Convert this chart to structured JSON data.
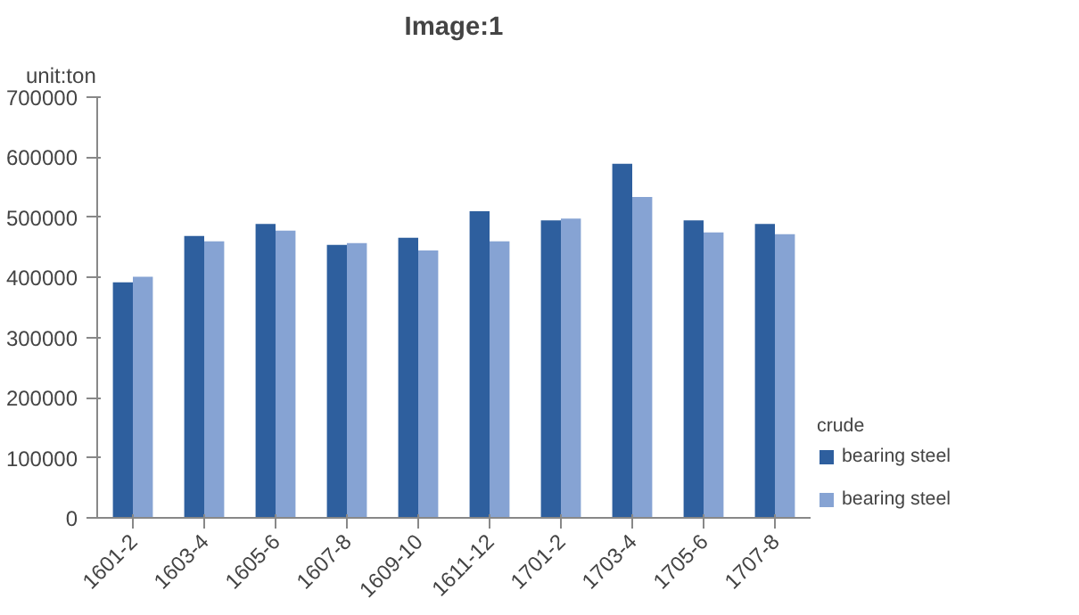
{
  "chart_data": {
    "type": "bar",
    "title": "Image:1",
    "ylabel": "unit:ton",
    "legend_title": "crude",
    "categories": [
      "1601-2",
      "1603-4",
      "1605-6",
      "1607-8",
      "1609-10",
      "1611-12",
      "1701-2",
      "1703-4",
      "1705-6",
      "1707-8"
    ],
    "series": [
      {
        "name": "bearing steel",
        "color": "#2e5f9e",
        "values": [
          392000,
          469000,
          489000,
          454000,
          466000,
          510000,
          495000,
          589000,
          495000,
          489000
        ]
      },
      {
        "name": "bearing steel",
        "color": "#86a3d3",
        "values": [
          401000,
          460000,
          478000,
          457000,
          445000,
          460000,
          498000,
          534000,
          475000,
          472000
        ]
      }
    ],
    "ylim": [
      0,
      700000
    ],
    "yticks": [
      0,
      100000,
      200000,
      300000,
      400000,
      500000,
      600000,
      700000
    ],
    "grid": false,
    "legend": "bottom right"
  }
}
